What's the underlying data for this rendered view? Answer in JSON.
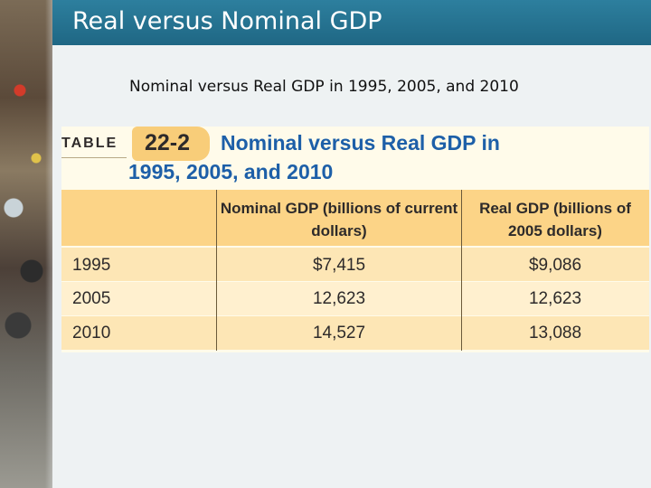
{
  "slide": {
    "title": "Real versus Nominal GDP",
    "subtitle": "Nominal versus Real GDP in 1995, 2005, and 2010"
  },
  "table": {
    "label": "TABLE",
    "number": "22-2",
    "heading_line1": "Nominal versus Real GDP in",
    "heading_line2": "1995, 2005, and 2010",
    "columns": [
      "",
      "Nominal GDP (billions of current dollars)",
      "Real GDP (billions of 2005 dollars)"
    ],
    "rows": [
      {
        "year": "1995",
        "nominal": "$7,415",
        "real": "$9,086"
      },
      {
        "year": "2005",
        "nominal": "12,623",
        "real": "12,623"
      },
      {
        "year": "2010",
        "nominal": "14,527",
        "real": "13,088"
      }
    ]
  },
  "colors": {
    "title_bar": "#2d7f9e",
    "table_heading": "#1d5fa8",
    "header_band": "#fcd487",
    "row_band": "#fde6b5"
  }
}
